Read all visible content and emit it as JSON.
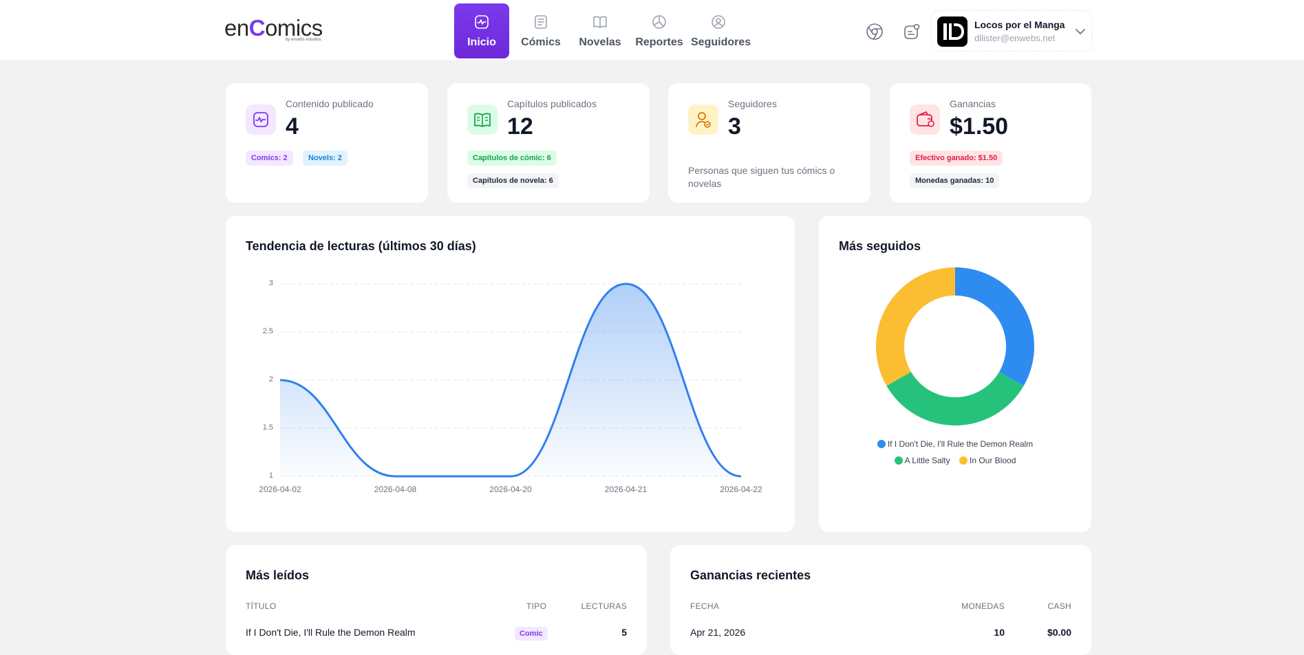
{
  "brand": {
    "name_prefix": "en",
    "name_highlight": "C",
    "name_suffix": "omics",
    "tagline": "by enuebs estudios",
    "accent": "#7c3aed"
  },
  "nav": [
    {
      "label": "Inicio",
      "icon": "activity-icon",
      "active": true
    },
    {
      "label": "Cómics",
      "icon": "document-icon",
      "active": false
    },
    {
      "label": "Novelas",
      "icon": "book-open-icon",
      "active": false
    },
    {
      "label": "Reportes",
      "icon": "chart-icon",
      "active": false
    },
    {
      "label": "Seguidores",
      "icon": "user-circle-icon",
      "active": false
    }
  ],
  "header_icons": [
    "chrome-icon",
    "notification-icon"
  ],
  "user": {
    "name": "Locos por el Manga",
    "email": "dllister@enwebs.net"
  },
  "stats": {
    "content": {
      "label": "Contenido publicado",
      "value": "4",
      "chips": [
        "Comics: 2",
        "Novels: 2"
      ]
    },
    "chapters": {
      "label": "Capítulos publicados",
      "value": "12",
      "chips": [
        "Capítulos de cómic: 6",
        "Capítulos de novela: 6"
      ]
    },
    "followers": {
      "label": "Seguidores",
      "value": "3",
      "description": "Personas que siguen tus cómics o novelas"
    },
    "earnings": {
      "label": "Ganancias",
      "value": "$1.50",
      "chips": [
        "Efectivo ganado: $1.50",
        "Monedas ganadas: 10"
      ]
    }
  },
  "trend": {
    "title": "Tendencia de lecturas (últimos 30 días)",
    "y_ticks": [
      "3",
      "2.5",
      "2",
      "1.5",
      "1"
    ]
  },
  "most_followed": {
    "title": "Más seguidos"
  },
  "chart_data": [
    {
      "type": "area",
      "title": "Tendencia de lecturas (últimos 30 días)",
      "x": [
        "2026-04-02",
        "2026-04-08",
        "2026-04-20",
        "2026-04-21",
        "2026-04-22"
      ],
      "values": [
        2,
        1,
        1,
        3,
        1
      ],
      "ylim": [
        1,
        3
      ],
      "grid": true,
      "color": "#2f80ed"
    },
    {
      "type": "pie",
      "title": "Más seguidos",
      "categories": [
        "If I Don't Die, I'll Rule the Demon Realm",
        "A Little Salty",
        "In Our Blood"
      ],
      "values": [
        1,
        1,
        1
      ],
      "colors": [
        "#2e8cf0",
        "#26c27c",
        "#fbbd31"
      ],
      "donut": true,
      "legend": "bottom"
    }
  ],
  "most_read": {
    "title": "Más leídos",
    "headers": [
      "TÍTULO",
      "TIPO",
      "LECTURAS"
    ],
    "rows": [
      {
        "title": "If I Don't Die, I'll Rule the Demon Realm",
        "type": "Comic",
        "reads": "5"
      }
    ]
  },
  "recent_earnings": {
    "title": "Ganancias recientes",
    "headers": [
      "FECHA",
      "MONEDAS",
      "CASH"
    ],
    "rows": [
      {
        "date": "Apr 21, 2026",
        "coins": "10",
        "cash": "$0.00"
      }
    ]
  }
}
